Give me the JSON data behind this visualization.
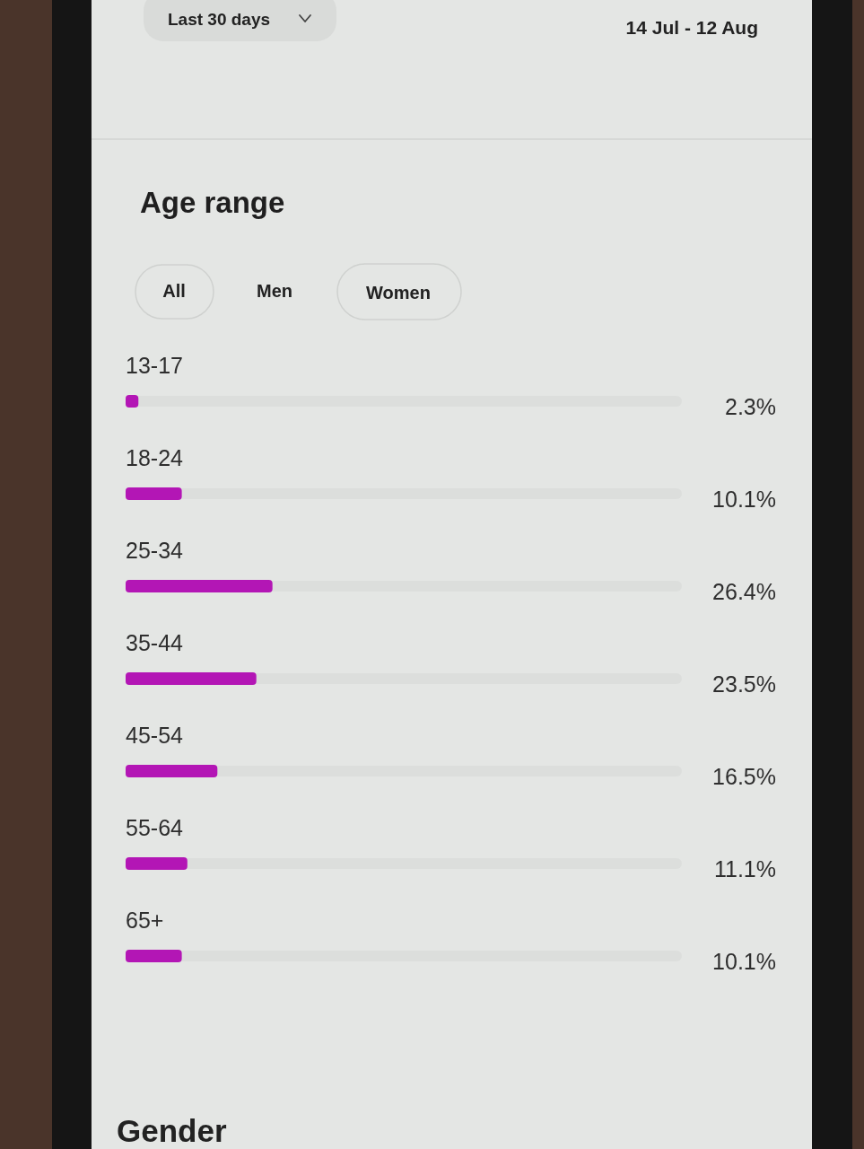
{
  "chart_data": {
    "type": "bar",
    "orientation": "horizontal",
    "title": "Age range",
    "categories": [
      "13-17",
      "18-24",
      "25-34",
      "35-44",
      "45-54",
      "55-64",
      "65+"
    ],
    "values": [
      2.3,
      10.1,
      26.4,
      23.5,
      16.5,
      11.1,
      10.1
    ],
    "value_labels": [
      "2.3%",
      "10.1%",
      "26.4%",
      "23.5%",
      "16.5%",
      "11.1%",
      "10.1%"
    ],
    "color": "#b316b5",
    "xlim": [
      0,
      100
    ],
    "tick_labels": "y",
    "annotations": [
      "Last 30 days",
      "14 Jul - 12 Aug",
      "All",
      "Men",
      "Women",
      "Gender"
    ]
  }
}
